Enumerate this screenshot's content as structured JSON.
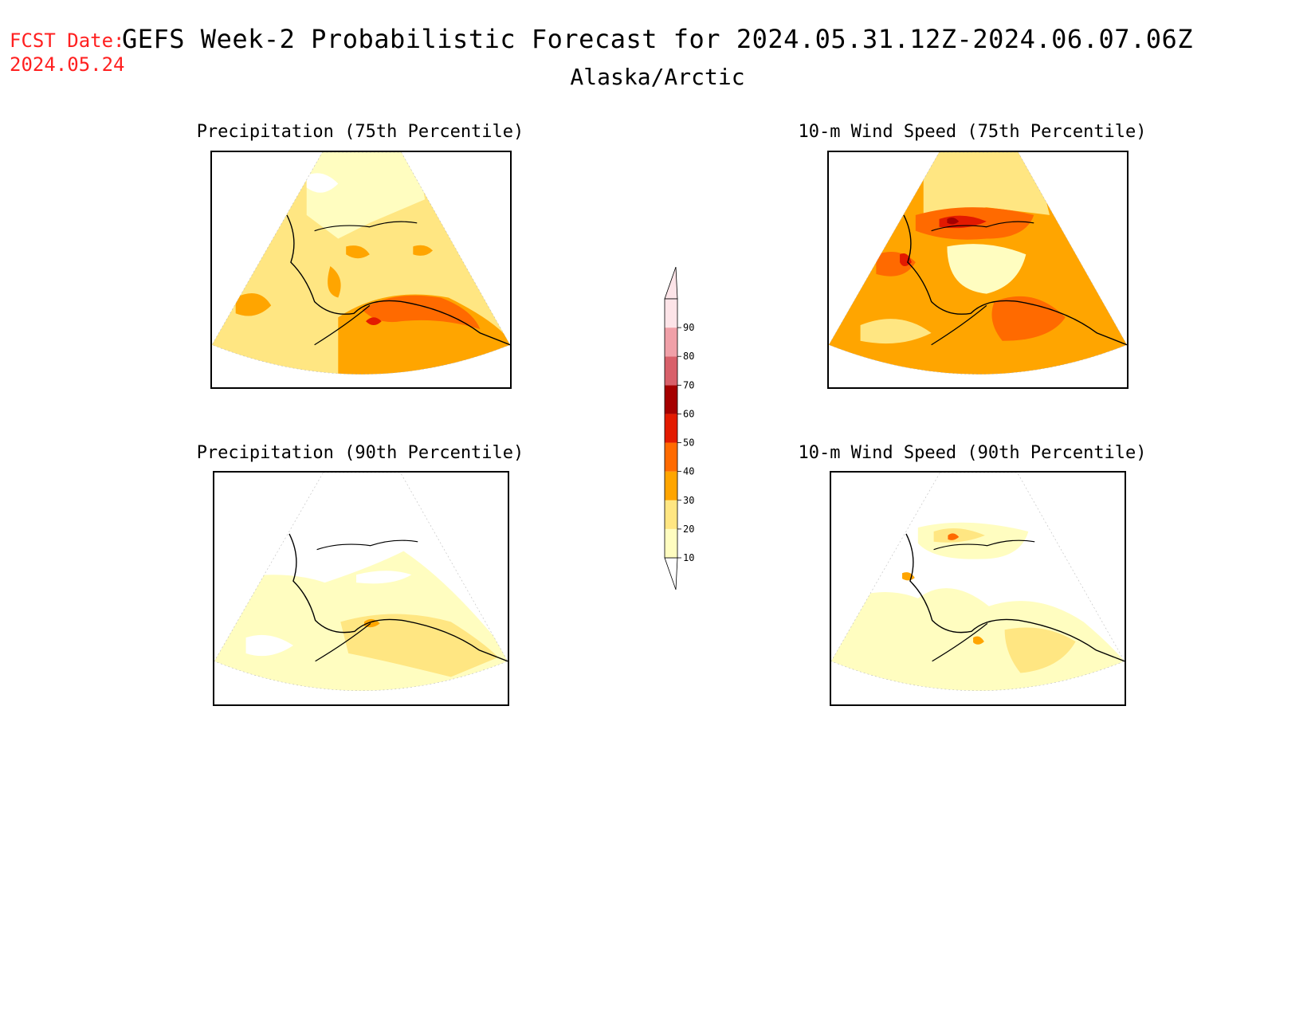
{
  "forecast_date": {
    "label": "FCST Date:",
    "value": "2024.05.24"
  },
  "title": "GEFS Week-2 Probabilistic Forecast for 2024.05.31.12Z-2024.06.07.06Z",
  "region": "Alaska/Arctic",
  "panels": [
    {
      "id": "precip-75",
      "title": "Precipitation (75th Percentile)"
    },
    {
      "id": "wind-75",
      "title": "10-m Wind Speed (75th Percentile)"
    },
    {
      "id": "precip-90",
      "title": "Precipitation (90th Percentile)"
    },
    {
      "id": "wind-90",
      "title": "10-m Wind Speed (90th Percentile)"
    }
  ],
  "colorbar": {
    "levels": [
      "10",
      "20",
      "30",
      "40",
      "50",
      "60",
      "70",
      "80",
      "90"
    ],
    "colors": [
      "#fffdc0",
      "#ffe682",
      "#ffa500",
      "#ff6a00",
      "#e31a00",
      "#a50000",
      "#d8606a",
      "#f0a0a8",
      "#fde4e8"
    ]
  }
}
